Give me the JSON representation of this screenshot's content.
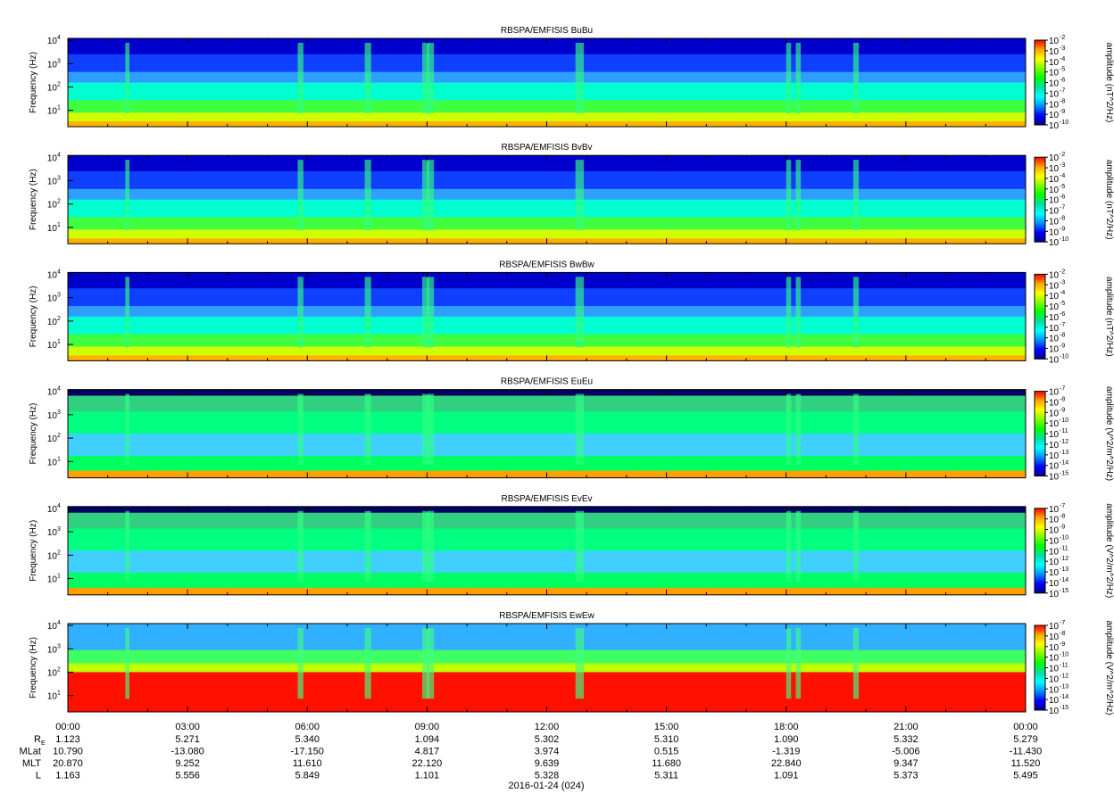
{
  "figure": {
    "date_label": "2016-01-24 (024)"
  },
  "chart_data": [
    {
      "type": "heatmap",
      "title": "RBSPA/EMFISIS  BuBu",
      "ylabel": "Frequency (Hz)",
      "ylim": [
        2,
        12000
      ],
      "yscale": "log",
      "ytick_values": [
        10,
        100,
        1000,
        10000
      ],
      "ytick_labels": [
        "10",
        "10",
        "10",
        "10"
      ],
      "ytick_exponents": [
        "1",
        "2",
        "3",
        "4"
      ],
      "colorbar": {
        "label": "amplitude (nT^2/Hz)",
        "scale": "log",
        "tick_labels": [
          "10",
          "10",
          "10",
          "10",
          "10",
          "10",
          "10",
          "10",
          "10"
        ],
        "tick_exponents": [
          "-2",
          "-3",
          "-4",
          "-5",
          "-6",
          "-7",
          "-8",
          "-9",
          "-10"
        ],
        "colors": [
          "#ff0000",
          "#ffa500",
          "#ffff00",
          "#7fff00",
          "#00ff00",
          "#00e0a0",
          "#00ffff",
          "#0090ff",
          "#0000ff",
          "#00008b"
        ]
      }
    },
    {
      "type": "heatmap",
      "title": "RBSPA/EMFISIS  BvBv",
      "ylabel": "Frequency (Hz)",
      "ylim": [
        2,
        12000
      ],
      "yscale": "log",
      "ytick_values": [
        10,
        100,
        1000,
        10000
      ],
      "ytick_labels": [
        "10",
        "10",
        "10",
        "10"
      ],
      "ytick_exponents": [
        "1",
        "2",
        "3",
        "4"
      ],
      "colorbar": {
        "label": "amplitude (nT^2/Hz)",
        "scale": "log",
        "tick_labels": [
          "10",
          "10",
          "10",
          "10",
          "10",
          "10",
          "10",
          "10",
          "10"
        ],
        "tick_exponents": [
          "-2",
          "-3",
          "-4",
          "-5",
          "-6",
          "-7",
          "-8",
          "-9",
          "-10"
        ],
        "colors": [
          "#ff0000",
          "#ffa500",
          "#ffff00",
          "#7fff00",
          "#00ff00",
          "#00e0a0",
          "#00ffff",
          "#0090ff",
          "#0000ff",
          "#00008b"
        ]
      }
    },
    {
      "type": "heatmap",
      "title": "RBSPA/EMFISIS  BwBw",
      "ylabel": "Frequency (Hz)",
      "ylim": [
        2,
        12000
      ],
      "yscale": "log",
      "ytick_values": [
        10,
        100,
        1000,
        10000
      ],
      "ytick_labels": [
        "10",
        "10",
        "10",
        "10"
      ],
      "ytick_exponents": [
        "1",
        "2",
        "3",
        "4"
      ],
      "colorbar": {
        "label": "amplitude (nT^2/Hz)",
        "scale": "log",
        "tick_labels": [
          "10",
          "10",
          "10",
          "10",
          "10",
          "10",
          "10",
          "10",
          "10"
        ],
        "tick_exponents": [
          "-2",
          "-3",
          "-4",
          "-5",
          "-6",
          "-7",
          "-8",
          "-9",
          "-10"
        ],
        "colors": [
          "#ff0000",
          "#ffa500",
          "#ffff00",
          "#7fff00",
          "#00ff00",
          "#00e0a0",
          "#00ffff",
          "#0090ff",
          "#0000ff",
          "#00008b"
        ]
      }
    },
    {
      "type": "heatmap",
      "title": "RBSPA/EMFISIS  EuEu",
      "ylabel": "Frequency (Hz)",
      "ylim": [
        2,
        12000
      ],
      "yscale": "log",
      "ytick_values": [
        10,
        100,
        1000,
        10000
      ],
      "ytick_labels": [
        "10",
        "10",
        "10",
        "10"
      ],
      "ytick_exponents": [
        "1",
        "2",
        "3",
        "4"
      ],
      "colorbar": {
        "label": "amplitude (V^2/m^2/Hz)",
        "scale": "log",
        "tick_labels": [
          "10",
          "10",
          "10",
          "10",
          "10",
          "10",
          "10",
          "10",
          "10"
        ],
        "tick_exponents": [
          "-7",
          "-8",
          "-9",
          "-10",
          "-11",
          "-12",
          "-13",
          "-14",
          "-15"
        ],
        "colors": [
          "#ff0000",
          "#ffa500",
          "#ffff00",
          "#7fff00",
          "#00ff00",
          "#00e0a0",
          "#00ffff",
          "#0090ff",
          "#0000ff",
          "#00008b"
        ]
      }
    },
    {
      "type": "heatmap",
      "title": "RBSPA/EMFISIS  EvEv",
      "ylabel": "Frequency (Hz)",
      "ylim": [
        2,
        12000
      ],
      "yscale": "log",
      "ytick_values": [
        10,
        100,
        1000,
        10000
      ],
      "ytick_labels": [
        "10",
        "10",
        "10",
        "10"
      ],
      "ytick_exponents": [
        "1",
        "2",
        "3",
        "4"
      ],
      "colorbar": {
        "label": "amplitude (V^2/m^2/Hz)",
        "scale": "log",
        "tick_labels": [
          "10",
          "10",
          "10",
          "10",
          "10",
          "10",
          "10",
          "10",
          "10"
        ],
        "tick_exponents": [
          "-7",
          "-8",
          "-9",
          "-10",
          "-11",
          "-12",
          "-13",
          "-14",
          "-15"
        ],
        "colors": [
          "#ff0000",
          "#ffa500",
          "#ffff00",
          "#7fff00",
          "#00ff00",
          "#00e0a0",
          "#00ffff",
          "#0090ff",
          "#0000ff",
          "#00008b"
        ]
      }
    },
    {
      "type": "heatmap",
      "title": "RBSPA/EMFISIS  EwEw",
      "ylabel": "Frequency (Hz)",
      "ylim": [
        2,
        12000
      ],
      "yscale": "log",
      "ytick_values": [
        10,
        100,
        1000,
        10000
      ],
      "ytick_labels": [
        "10",
        "10",
        "10",
        "10"
      ],
      "ytick_exponents": [
        "1",
        "2",
        "3",
        "4"
      ],
      "colorbar": {
        "label": "amplitude (V^2/m^2/Hz)",
        "scale": "log",
        "tick_labels": [
          "10",
          "10",
          "10",
          "10",
          "10",
          "10",
          "10",
          "10",
          "10"
        ],
        "tick_exponents": [
          "-7",
          "-8",
          "-9",
          "-10",
          "-11",
          "-12",
          "-13",
          "-14",
          "-15"
        ],
        "colors": [
          "#ff0000",
          "#ffa500",
          "#ffff00",
          "#7fff00",
          "#00ff00",
          "#00e0a0",
          "#00ffff",
          "#0090ff",
          "#0000ff",
          "#00008b"
        ]
      }
    }
  ],
  "x_axis": {
    "tick_labels": [
      "00:00",
      "03:00",
      "06:00",
      "09:00",
      "12:00",
      "15:00",
      "18:00",
      "21:00",
      "00:00"
    ],
    "ephemeris_rows": [
      {
        "label": "R",
        "label_sub": "E",
        "values": [
          "1.123",
          "5.271",
          "5.340",
          "1.094",
          "5.302",
          "5.310",
          "1.090",
          "5.332",
          "5.279"
        ]
      },
      {
        "label": "MLat",
        "values": [
          "10.790",
          "-13.080",
          "-17.150",
          "4.817",
          "3.974",
          "0.515",
          "-1.319",
          "-5.006",
          "-11.430"
        ]
      },
      {
        "label": "MLT",
        "values": [
          "20.870",
          "9.252",
          "11.610",
          "22.120",
          "9.639",
          "11.680",
          "22.840",
          "9.347",
          "11.520"
        ]
      },
      {
        "label": "L",
        "values": [
          "1.163",
          "5.556",
          "5.849",
          "1.101",
          "5.328",
          "5.311",
          "1.091",
          "5.373",
          "5.495"
        ]
      }
    ]
  }
}
